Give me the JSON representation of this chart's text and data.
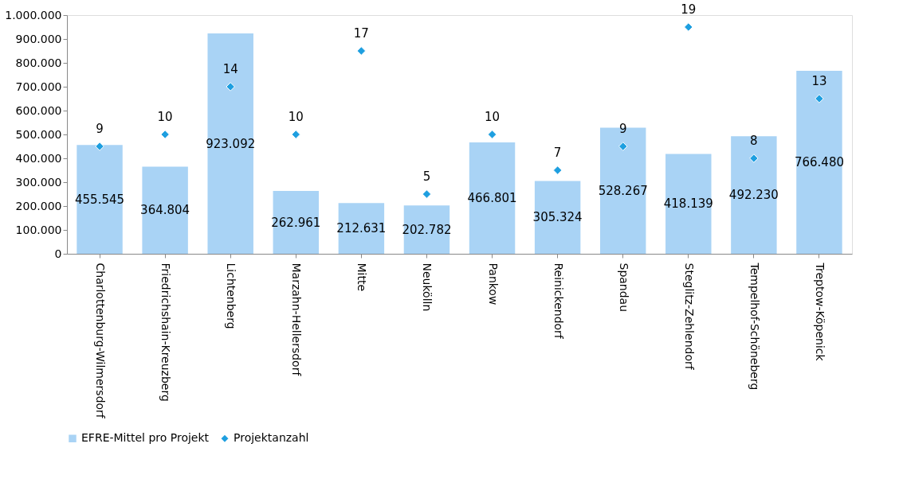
{
  "chart_data": {
    "type": "bar",
    "categories": [
      "Charlottenburg-Wilmersdorf",
      "Friedrichshain-Kreuzberg",
      "Lichtenberg",
      "Marzahn-Hellersdorf",
      "Mitte",
      "Neukölln",
      "Pankow",
      "Reinickendorf",
      "Spandau",
      "Steglitz-Zehlendorf",
      "Tempelhof-Schöneberg",
      "Treptow-Köpenick"
    ],
    "series": [
      {
        "name": "EFRE-Mittel pro Projekt",
        "color": "#a9d3f5",
        "values": [
          455545,
          364804,
          923092,
          262961,
          212631,
          202782,
          466801,
          305324,
          528267,
          418139,
          492230,
          766480
        ],
        "value_labels": [
          "455.545",
          "364.804",
          "923.092",
          "262.961",
          "212.631",
          "202.782",
          "466.801",
          "305.324",
          "528.267",
          "418.139",
          "492.230",
          "766.480"
        ]
      },
      {
        "name": "Projektanzahl",
        "type": "scatter",
        "axis": "y2",
        "color": "#1e9fe0",
        "marker": "diamond",
        "data_labels": true,
        "values": [
          9,
          10,
          14,
          10,
          17,
          5,
          10,
          7,
          9,
          19,
          8,
          13
        ]
      }
    ],
    "ylim": [
      0,
      1000000
    ],
    "yticks": [
      {
        "value": 0,
        "label": "0"
      },
      {
        "value": 100000,
        "label": "100.000"
      },
      {
        "value": 200000,
        "label": "200.000"
      },
      {
        "value": 300000,
        "label": "300.000"
      },
      {
        "value": 400000,
        "label": "400.000"
      },
      {
        "value": 500000,
        "label": "500.000"
      },
      {
        "value": 600000,
        "label": "600.000"
      },
      {
        "value": 700000,
        "label": "700.000"
      },
      {
        "value": 800000,
        "label": "800.000"
      },
      {
        "value": 900000,
        "label": "900.000"
      },
      {
        "value": 1000000,
        "label": "1.000.000"
      }
    ],
    "y2lim": [
      0,
      20
    ],
    "legend": "bottom",
    "grid": false
  }
}
